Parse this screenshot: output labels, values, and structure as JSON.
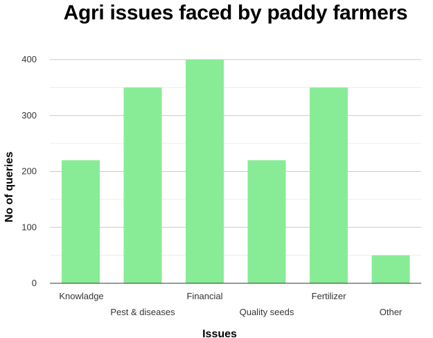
{
  "chart_data": {
    "type": "bar",
    "title": "Agri issues faced by paddy farmers",
    "xlabel": "Issues",
    "ylabel": "No of queries",
    "categories": [
      "Knowladge",
      "Pest & diseases",
      "Financial",
      "Quality seeds",
      "Fertilizer",
      "Other"
    ],
    "values": [
      220,
      350,
      400,
      220,
      350,
      50
    ],
    "ylim": [
      0,
      400
    ],
    "yticks": [
      "0",
      "100",
      "200",
      "300",
      "400"
    ],
    "grid": true,
    "bar_color": "#88ec96",
    "legend": "none"
  }
}
